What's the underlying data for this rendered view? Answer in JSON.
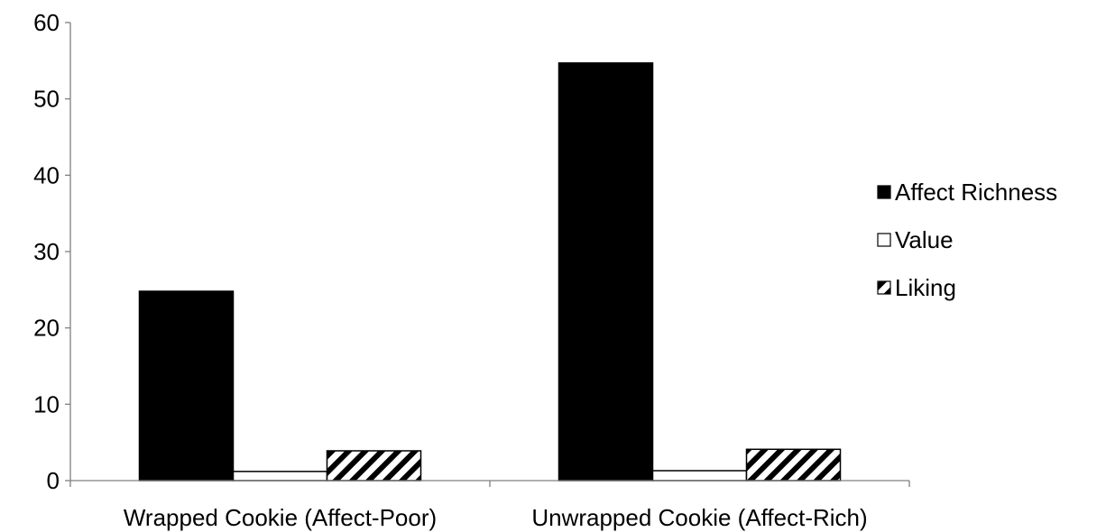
{
  "chart_data": {
    "type": "bar",
    "title": "",
    "xlabel": "",
    "ylabel": "",
    "ylim": [
      0,
      60
    ],
    "yticks": [
      0,
      10,
      20,
      30,
      40,
      50,
      60
    ],
    "grid": false,
    "legend_position": "right",
    "categories": [
      "Wrapped Cookie (Affect-Poor)",
      "Unwrapped Cookie (Affect-Rich)"
    ],
    "series": [
      {
        "name": "Affect Richness",
        "values": [
          24.8,
          54.7
        ],
        "fill": "solid",
        "color": "#000000"
      },
      {
        "name": "Value",
        "values": [
          1.2,
          1.3
        ],
        "fill": "none",
        "color": "#ffffff"
      },
      {
        "name": "Liking",
        "values": [
          3.9,
          4.1
        ],
        "fill": "hatch",
        "color": "#000000"
      }
    ]
  }
}
